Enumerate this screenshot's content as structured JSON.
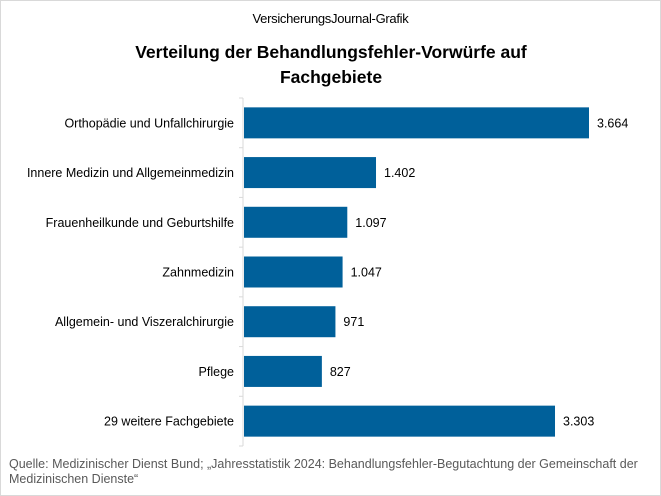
{
  "supertitle": "VersicherungsJournal-Grafik",
  "source": "Quelle: Medizinischer Dienst Bund; „Jahresstatistik 2024: Behandlungsfehler-Begutachtung der Gemeinschaft der Medizinischen Dienste“",
  "chart_data": {
    "type": "bar",
    "orientation": "horizontal",
    "title": "Verteilung der Behandlungsfehler-Vorwürfe auf Fachgebiete",
    "categories": [
      "Orthopädie und Unfallchirurgie",
      "Innere Medizin und Allgemeinmedizin",
      "Frauenheilkunde und Geburtshilfe",
      "Zahnmedizin",
      "Allgemein- und Viszeralchirurgie",
      "Pflege",
      "29 weitere Fachgebiete"
    ],
    "values": [
      3664,
      1402,
      1097,
      1047,
      971,
      827,
      3303
    ],
    "value_labels": [
      "3.664",
      "1.402",
      "1.097",
      "1.047",
      "971",
      "827",
      "3.303"
    ],
    "bar_color": "#00609a",
    "grid": false,
    "legend": "none"
  }
}
